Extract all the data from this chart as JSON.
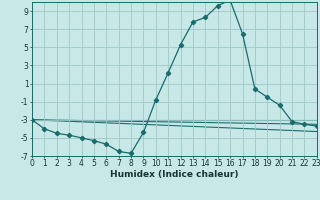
{
  "xlabel": "Humidex (Indice chaleur)",
  "bg_color": "#c8e8e8",
  "grid_color": "#a0c8c8",
  "line_color": "#1a6b6b",
  "xlim": [
    0,
    23
  ],
  "ylim": [
    -7,
    10
  ],
  "xticks": [
    0,
    1,
    2,
    3,
    4,
    5,
    6,
    7,
    8,
    9,
    10,
    11,
    12,
    13,
    14,
    15,
    16,
    17,
    18,
    19,
    20,
    21,
    22,
    23
  ],
  "yticks": [
    -7,
    -5,
    -3,
    -1,
    1,
    3,
    5,
    7,
    9
  ],
  "main_x": [
    0,
    1,
    2,
    3,
    4,
    5,
    6,
    7,
    8,
    9,
    10,
    11,
    12,
    13,
    14,
    15,
    16,
    17,
    18,
    19,
    20,
    21,
    22,
    23
  ],
  "main_y": [
    -3,
    -4,
    -4.5,
    -4.7,
    -5,
    -5.3,
    -5.7,
    -6.5,
    -6.7,
    -4.4,
    -0.8,
    2.2,
    5.3,
    7.8,
    8.3,
    9.6,
    10.2,
    6.5,
    0.4,
    -0.5,
    -1.4,
    -3.2,
    -3.5,
    -3.7
  ],
  "ref_lines": [
    {
      "x": [
        0,
        23
      ],
      "y": [
        -3.0,
        -3.5
      ]
    },
    {
      "x": [
        0,
        23
      ],
      "y": [
        -3.0,
        -4.3
      ]
    },
    {
      "x": [
        0,
        23
      ],
      "y": [
        -3.0,
        -3.0
      ]
    }
  ],
  "xlabel_fontsize": 6.5,
  "tick_fontsize": 5.5
}
